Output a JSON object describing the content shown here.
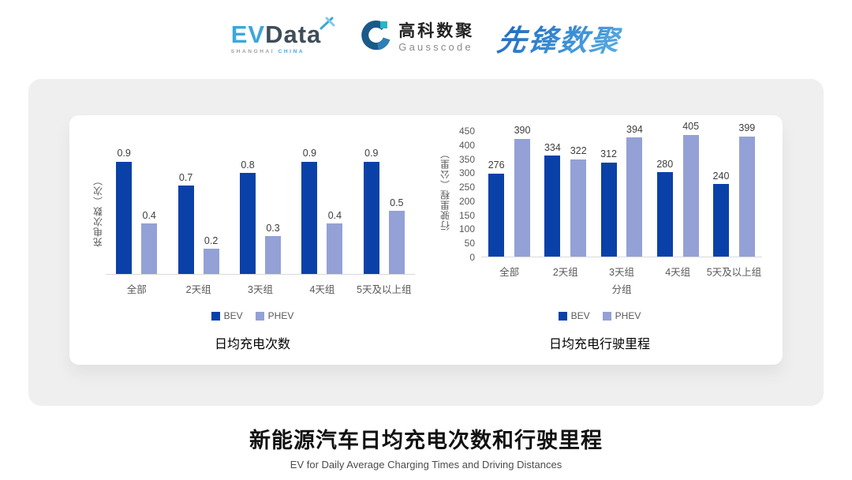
{
  "header": {
    "evdata": {
      "ev": "EV",
      "data": "Data",
      "sub_left": "SHANGHAI",
      "sub_right": "CHINA"
    },
    "gausscode": {
      "cn": "高科数聚",
      "en": "Gausscode"
    },
    "xianfeng": {
      "text": "先锋数聚"
    }
  },
  "colors": {
    "bev": "#0A41A8",
    "phev": "#94A1D6",
    "axis": "#D9D9D9",
    "panel_bg": "#EFEFEF"
  },
  "chart_data": [
    {
      "type": "bar",
      "title": "日均充电次数",
      "ylabel": "充电次数（次）",
      "xlabel": "",
      "categories": [
        "全部",
        "2天组",
        "3天组",
        "4天组",
        "5天及以上组"
      ],
      "series": [
        {
          "name": "BEV",
          "values": [
            0.9,
            0.7,
            0.8,
            0.9,
            0.9
          ]
        },
        {
          "name": "PHEV",
          "values": [
            0.4,
            0.2,
            0.3,
            0.4,
            0.5
          ]
        }
      ],
      "ylim": [
        0,
        1
      ],
      "yticks": [],
      "grid": false,
      "legend_position": "bottom"
    },
    {
      "type": "bar",
      "title": "日均充电行驶里程",
      "ylabel": "行驶里程（公里）",
      "xlabel": "分组",
      "categories": [
        "全部",
        "2天组",
        "3天组",
        "4天组",
        "5天及以上组"
      ],
      "series": [
        {
          "name": "BEV",
          "values": [
            276,
            334,
            312,
            280,
            240
          ]
        },
        {
          "name": "PHEV",
          "values": [
            390,
            322,
            394,
            405,
            399
          ]
        }
      ],
      "ylim": [
        0,
        450
      ],
      "yticks": [
        0,
        50,
        100,
        150,
        200,
        250,
        300,
        350,
        400,
        450
      ],
      "grid": false,
      "legend_position": "bottom"
    }
  ],
  "footer": {
    "title": "新能源汽车日均充电次数和行驶里程",
    "subtitle": "EV for Daily Average Charging Times and Driving Distances"
  }
}
